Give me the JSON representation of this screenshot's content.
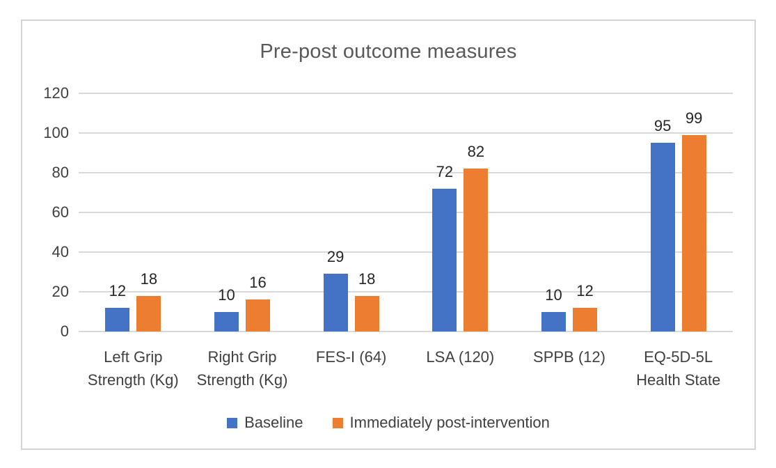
{
  "chart_data": {
    "type": "bar",
    "title": "Pre-post outcome measures",
    "categories": [
      "Left Grip Strength (Kg)",
      "Right Grip Strength (Kg)",
      "FES-I (64)",
      "LSA (120)",
      "SPPB (12)",
      "EQ-5D-5L Health State"
    ],
    "series": [
      {
        "name": "Baseline",
        "color": "#4472C4",
        "values": [
          12,
          10,
          29,
          72,
          10,
          95
        ]
      },
      {
        "name": "Immediately post-intervention",
        "color": "#ED7D31",
        "values": [
          18,
          16,
          18,
          82,
          12,
          99
        ]
      }
    ],
    "ylim": [
      0,
      120
    ],
    "yticks": [
      0,
      20,
      40,
      60,
      80,
      100,
      120
    ],
    "data_labels": true,
    "grid": "horizontal",
    "legend_position": "bottom",
    "colors": {
      "grid_line": "#D9D9D9",
      "axis_text": "#404040",
      "title_text": "#595959",
      "value_label_text": "#262626",
      "frame_border": "#D3D3D3"
    }
  }
}
